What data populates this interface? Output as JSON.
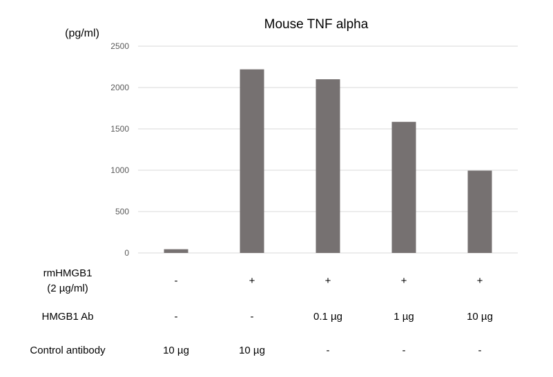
{
  "chart_data": {
    "type": "bar",
    "title": "Mouse TNF alpha",
    "ylabel": "(pg/ml)",
    "xlabel": "",
    "ylim": [
      0,
      2500
    ],
    "yticks": [
      0,
      500,
      1000,
      1500,
      2000,
      2500
    ],
    "grid": true,
    "legend": "none",
    "bar_color": "#767171",
    "values": [
      45,
      2220,
      2100,
      1585,
      995
    ],
    "condition_rows": [
      {
        "label_lines": [
          "rmHMGB1",
          "(2 µg/ml)"
        ],
        "cells": [
          "-",
          "+",
          "+",
          "+",
          "+"
        ]
      },
      {
        "label_lines": [
          "HMGB1 Ab"
        ],
        "cells": [
          "-",
          "-",
          "0.1 µg",
          "1 µg",
          "10 µg"
        ]
      },
      {
        "label_lines": [
          "Control antibody"
        ],
        "cells": [
          "10 µg",
          "10 µg",
          "-",
          "-",
          "-"
        ]
      }
    ]
  }
}
